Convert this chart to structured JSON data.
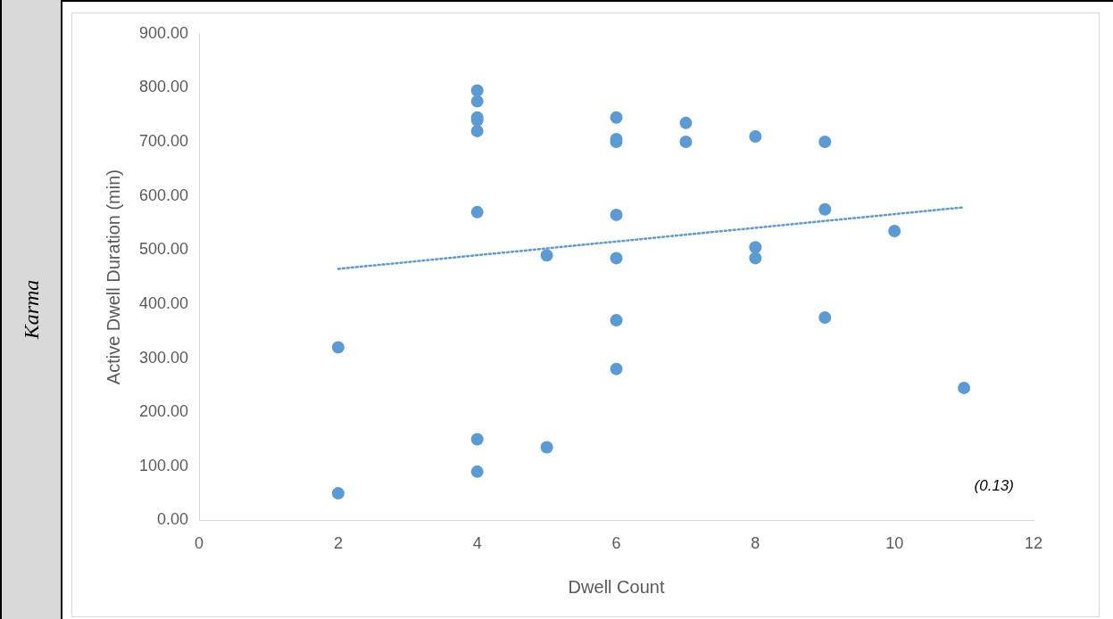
{
  "chart_data": {
    "type": "scatter",
    "title": "Karma",
    "xlabel": "Dwell Count",
    "ylabel": "Active Dwell Duration (min)",
    "xlim": [
      0,
      12
    ],
    "xticks": [
      0,
      2,
      4,
      6,
      8,
      10,
      12
    ],
    "ylim": [
      0,
      900
    ],
    "yticks": [
      {
        "value": 0,
        "label": "0.00"
      },
      {
        "value": 100,
        "label": "100.00"
      },
      {
        "value": 200,
        "label": "200.00"
      },
      {
        "value": 300,
        "label": "300.00"
      },
      {
        "value": 400,
        "label": "400.00"
      },
      {
        "value": 500,
        "label": "500.00"
      },
      {
        "value": 600,
        "label": "600.00"
      },
      {
        "value": 700,
        "label": "700.00"
      },
      {
        "value": 800,
        "label": "800.00"
      },
      {
        "value": 900,
        "label": "900.00"
      }
    ],
    "series": [
      {
        "color": "#5b9bd5",
        "marker": "circle",
        "x": [
          2,
          2,
          4,
          4,
          4,
          4,
          4,
          4,
          4,
          4,
          5,
          5,
          6,
          6,
          6,
          6,
          6,
          6,
          6,
          7,
          7,
          8,
          8,
          8,
          9,
          9,
          9,
          10,
          11
        ],
        "values": [
          320,
          50,
          795,
          775,
          745,
          740,
          720,
          570,
          150,
          90,
          490,
          135,
          745,
          705,
          700,
          565,
          485,
          370,
          280,
          735,
          700,
          710,
          505,
          485,
          700,
          575,
          375,
          535,
          245
        ]
      },
      {
        "type": "line",
        "color": "#5b9bd5",
        "marker": "none",
        "line_style": "dotted",
        "x": [
          2,
          11
        ],
        "values": [
          465,
          579
        ]
      }
    ],
    "annotations": [
      "(0.13)"
    ],
    "grid": false,
    "legend": false
  }
}
